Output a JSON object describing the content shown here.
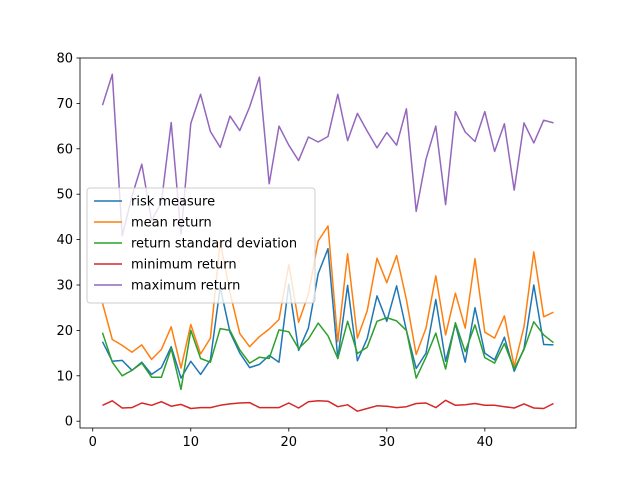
{
  "chart_data": {
    "type": "line",
    "title": "",
    "xlabel": "",
    "ylabel": "",
    "x": [
      1,
      2,
      3,
      4,
      5,
      6,
      7,
      8,
      9,
      10,
      11,
      12,
      13,
      14,
      15,
      16,
      17,
      18,
      19,
      20,
      21,
      22,
      23,
      24,
      25,
      26,
      27,
      28,
      29,
      30,
      31,
      32,
      33,
      34,
      35,
      36,
      37,
      38,
      39,
      40,
      41,
      42,
      43,
      44,
      45,
      46,
      47
    ],
    "xlim": [
      -1.3,
      49.3
    ],
    "ylim": [
      -1.5,
      80
    ],
    "xticks": [
      0,
      10,
      20,
      30,
      40
    ],
    "yticks": [
      0,
      10,
      20,
      30,
      40,
      50,
      60,
      70,
      80
    ],
    "grid": false,
    "legend_position": "center-left",
    "series": [
      {
        "name": "risk measure",
        "color": "#1f77b4",
        "values": [
          17.5,
          13.2,
          13.4,
          11.2,
          13,
          10.3,
          11.8,
          16.4,
          9.5,
          13.2,
          10.3,
          13.5,
          29.5,
          19.6,
          15,
          11.8,
          12.5,
          14.5,
          13,
          30.2,
          15.6,
          20.5,
          32.5,
          38,
          13.8,
          29.9,
          13.3,
          18.2,
          27.6,
          22,
          29.8,
          20,
          11.6,
          15,
          26.8,
          13.2,
          21.4,
          13,
          25,
          15,
          13.5,
          18.5,
          11,
          16,
          30,
          16.9,
          16.8
        ]
      },
      {
        "name": "mean return",
        "color": "#ff7f0e",
        "values": [
          26,
          18,
          16.7,
          15.2,
          16.8,
          13.6,
          15.8,
          20.8,
          11.7,
          21.3,
          14.8,
          18.3,
          39.5,
          28.3,
          19.3,
          16.4,
          18.6,
          20.3,
          22.4,
          34.5,
          21.8,
          28,
          39.7,
          43,
          17.5,
          36.9,
          18.3,
          24.3,
          35.9,
          30.5,
          36.5,
          26.8,
          14.7,
          20.5,
          32,
          19,
          28.2,
          20.5,
          35.8,
          19.6,
          18.3,
          23.2,
          12,
          20.8,
          37.3,
          23,
          24
        ]
      },
      {
        "name": "return standard deviation",
        "color": "#2ca02c",
        "values": [
          19.5,
          13,
          10,
          11.2,
          12.8,
          9.7,
          9.7,
          16,
          7,
          20,
          13.8,
          13,
          20.4,
          20,
          15.7,
          12.8,
          14.1,
          13.8,
          20.1,
          19.7,
          16,
          18.1,
          21.6,
          18.8,
          13.8,
          22,
          14.9,
          16.3,
          22,
          22.8,
          22.1,
          20,
          9.5,
          14.1,
          19.4,
          11.5,
          21.7,
          15.3,
          21.2,
          14,
          12.8,
          17.1,
          11.5,
          15.8,
          21.9,
          19,
          17.3
        ]
      },
      {
        "name": "minimum return",
        "color": "#d62728",
        "values": [
          3.5,
          4.5,
          2.9,
          3,
          4,
          3.5,
          4.3,
          3.3,
          3.7,
          2.8,
          3,
          3,
          3.5,
          3.8,
          4,
          4.1,
          3,
          3,
          3,
          4,
          2.9,
          4.3,
          4.5,
          4.4,
          3.2,
          3.6,
          2.2,
          2.8,
          3.4,
          3.3,
          3,
          3.2,
          3.9,
          4,
          3,
          4.6,
          3.5,
          3.6,
          3.9,
          3.5,
          3.5,
          3.2,
          2.9,
          3.8,
          2.9,
          2.8,
          3.9
        ]
      },
      {
        "name": "maximum return",
        "color": "#9467bd",
        "values": [
          69.6,
          76.4,
          40.8,
          49.6,
          56.6,
          44.2,
          48.2,
          65.8,
          41.2,
          65.6,
          72,
          63.8,
          60.3,
          67.2,
          64,
          69.2,
          75.8,
          52.3,
          65,
          60.8,
          57.4,
          62.6,
          61.5,
          62.7,
          72,
          61.8,
          67.8,
          63.9,
          60.2,
          63.6,
          60.8,
          68.8,
          46.2,
          57.7,
          65,
          47.7,
          68.2,
          63.7,
          61.6,
          68.2,
          59.4,
          65.5,
          50.9,
          65.7,
          61.3,
          66.3,
          65.7
        ]
      }
    ]
  }
}
